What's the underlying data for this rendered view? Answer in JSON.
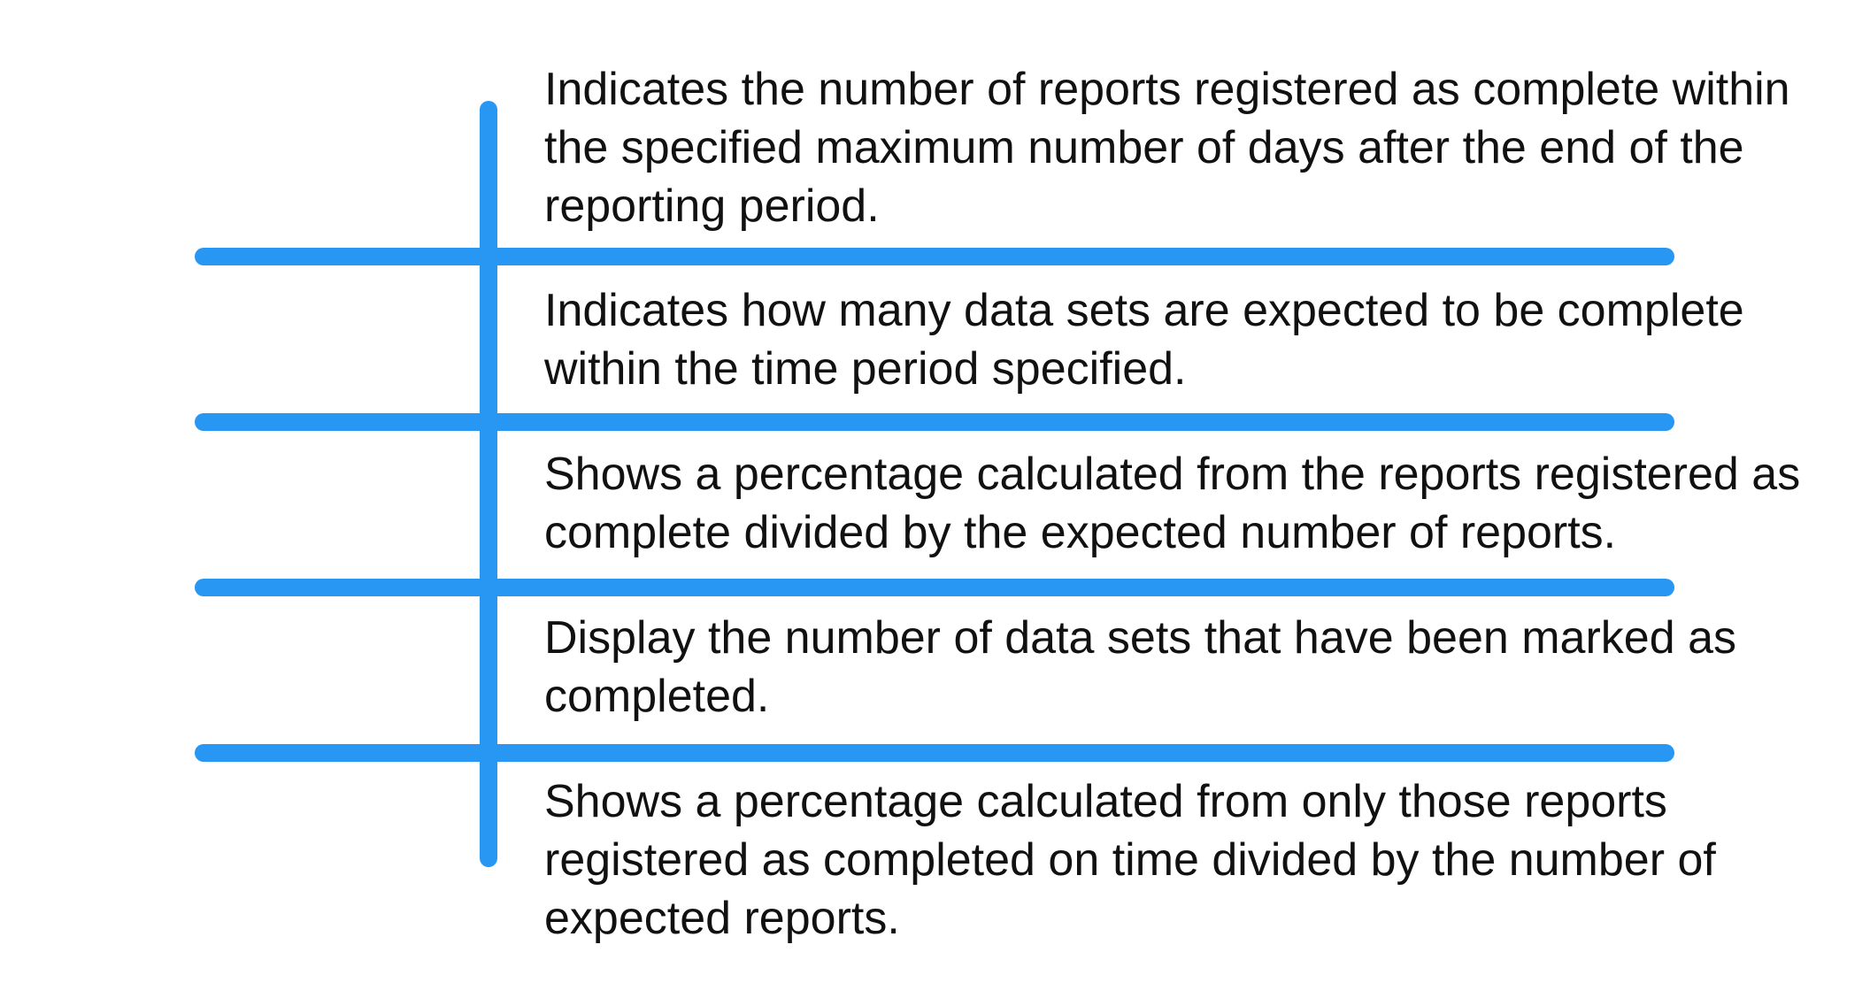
{
  "colors": {
    "line": "#2897f3",
    "text": "#111111",
    "background": "#ffffff"
  },
  "items": [
    {
      "text": "Indicates the number of reports registered as complete within the specified maximum number of days after the end of the reporting period."
    },
    {
      "text": "Indicates how many data sets are expected to be complete within the time period specified."
    },
    {
      "text": "Shows a percentage calculated from the reports registered as complete divided by the expected number of reports."
    },
    {
      "text": "Display the number of data sets that have been marked as completed."
    },
    {
      "text": "Shows a percentage calculated from only those reports registered as completed on time divided by the number of expected reports."
    }
  ]
}
